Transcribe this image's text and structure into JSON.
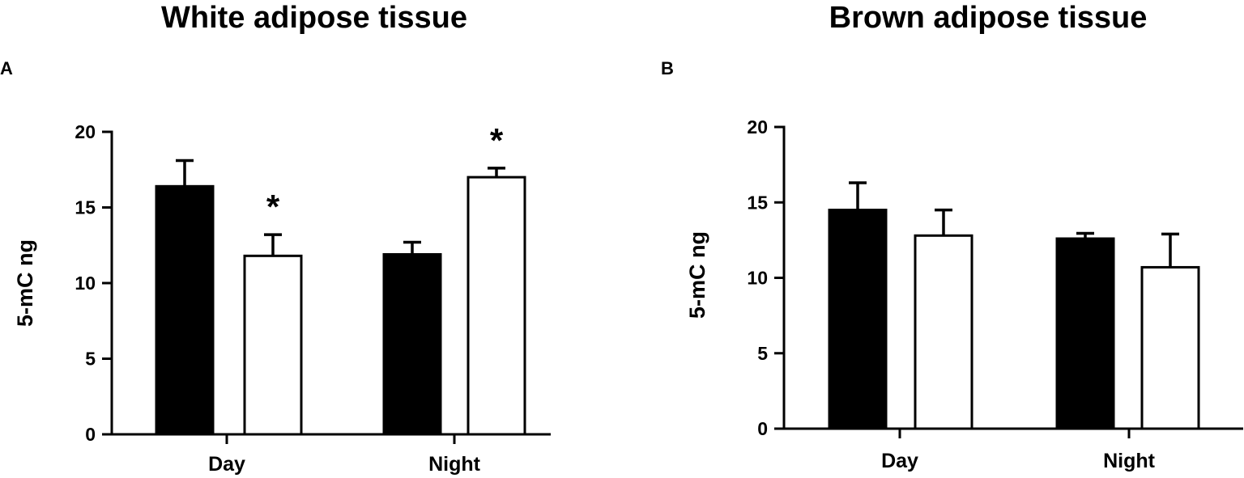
{
  "chart_data": [
    {
      "type": "bar",
      "panel": "A",
      "title": "White adipose tissue",
      "ylabel": "5-mC ng",
      "xlabel": "",
      "ylim": [
        0,
        20
      ],
      "yticks": [
        0,
        5,
        10,
        15,
        20
      ],
      "categories": [
        "Day",
        "Night"
      ],
      "series": [
        {
          "fill": "#000000",
          "values": [
            16.4,
            11.9
          ],
          "errors": [
            1.7,
            0.8
          ]
        },
        {
          "fill": "#ffffff",
          "values": [
            11.8,
            17.0
          ],
          "errors": [
            1.4,
            0.6
          ]
        }
      ],
      "annotations": [
        {
          "text": "*",
          "category": "Day",
          "series_index": 1
        },
        {
          "text": "*",
          "category": "Night",
          "series_index": 1
        }
      ],
      "grid": false
    },
    {
      "type": "bar",
      "panel": "B",
      "title": "Brown adipose tissue",
      "ylabel": "5-mC ng",
      "xlabel": "",
      "ylim": [
        0,
        20
      ],
      "yticks": [
        0,
        5,
        10,
        15,
        20
      ],
      "categories": [
        "Day",
        "Night"
      ],
      "series": [
        {
          "fill": "#000000",
          "values": [
            14.5,
            12.6
          ],
          "errors": [
            1.8,
            0.35
          ]
        },
        {
          "fill": "#ffffff",
          "values": [
            12.8,
            10.7
          ],
          "errors": [
            1.7,
            2.2
          ]
        }
      ],
      "annotations": [],
      "grid": false
    }
  ]
}
